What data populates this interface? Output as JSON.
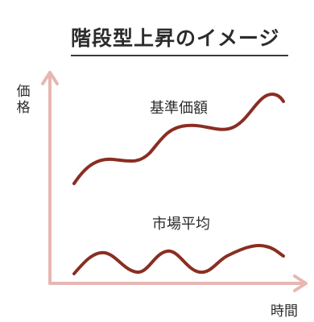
{
  "title": "階段型上昇のイメージ",
  "y_axis_label": "価格",
  "x_axis_label": "時間",
  "series": [
    {
      "name": "基準価額"
    },
    {
      "name": "市場平均"
    }
  ],
  "colors": {
    "axis": "#e7b7b3",
    "curve": "#8a2e22",
    "text": "#2b2b2b"
  }
}
